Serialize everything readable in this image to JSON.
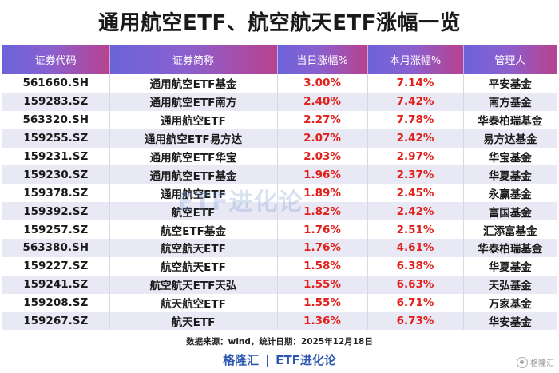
{
  "title": "通用航空ETF、航空航天ETF涨幅一览",
  "table": {
    "headers": [
      "证券代码",
      "证券简称",
      "当日涨幅%",
      "本月涨幅%",
      "管理人"
    ],
    "rows": [
      [
        "561660.SH",
        "通用航空ETF基金",
        "3.00%",
        "7.14%",
        "平安基金"
      ],
      [
        "159283.SZ",
        "通用航空ETF南方",
        "2.40%",
        "7.42%",
        "南方基金"
      ],
      [
        "563320.SH",
        "通用航空ETF",
        "2.27%",
        "7.78%",
        "华泰柏瑞基金"
      ],
      [
        "159255.SZ",
        "通用航空ETF易方达",
        "2.07%",
        "2.42%",
        "易方达基金"
      ],
      [
        "159231.SZ",
        "通用航空ETF华宝",
        "2.03%",
        "2.97%",
        "华宝基金"
      ],
      [
        "159230.SZ",
        "通用航空ETF基金",
        "1.96%",
        "2.37%",
        "华夏基金"
      ],
      [
        "159378.SZ",
        "通用航空ETF",
        "1.89%",
        "2.45%",
        "永赢基金"
      ],
      [
        "159392.SZ",
        "航空ETF",
        "1.82%",
        "2.42%",
        "富国基金"
      ],
      [
        "159257.SZ",
        "航空ETF基金",
        "1.76%",
        "2.51%",
        "汇添富基金"
      ],
      [
        "563380.SH",
        "航空航天ETF",
        "1.76%",
        "4.61%",
        "华泰柏瑞基金"
      ],
      [
        "159227.SZ",
        "航空航天ETF",
        "1.58%",
        "6.38%",
        "华夏基金"
      ],
      [
        "159241.SZ",
        "航空航天ETF天弘",
        "1.55%",
        "6.63%",
        "天弘基金"
      ],
      [
        "159208.SZ",
        "航天航空ETF",
        "1.55%",
        "6.71%",
        "万家基金"
      ],
      [
        "159267.SZ",
        "航天ETF",
        "1.36%",
        "6.73%",
        "华安基金"
      ]
    ]
  },
  "footnote": "数据来源：wind，统计日期：2025年12月18日",
  "brand": {
    "left": "格隆汇",
    "separator": "|",
    "right": "ETF进化论"
  },
  "watermark": "ETF进化论",
  "logo_text": "格隆汇",
  "colors": {
    "header_gradient_start": "#6b63d9",
    "header_gradient_end": "#b8428f",
    "alt_row": "#e9e8f5",
    "positive_red": "#e0201b",
    "brand_blue": "#2d57b0"
  }
}
